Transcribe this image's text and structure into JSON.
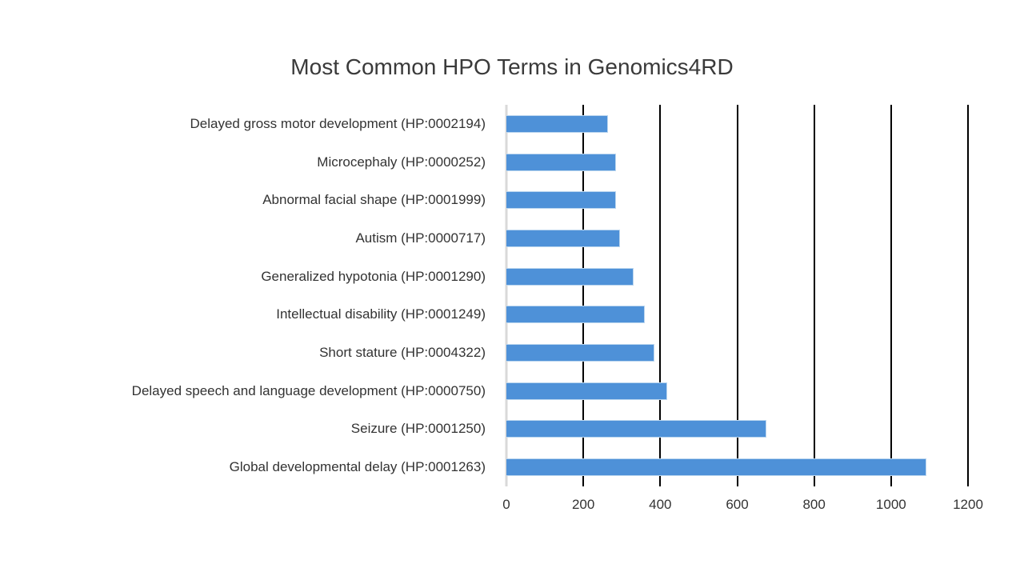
{
  "colors": {
    "bar_fill": "#4E91D8",
    "bar_border": "#BBD6EF",
    "gridline": "#000000",
    "zero_axis_line": "#D9D9D9",
    "title_text": "#3A3A3A",
    "label_text": "#333333"
  },
  "chart_data": {
    "type": "bar",
    "orientation": "horizontal",
    "title": "Most Common HPO Terms in Genomics4RD",
    "xlabel": "",
    "ylabel": "",
    "categories": [
      "Delayed gross motor development (HP:0002194)",
      "Microcephaly (HP:0000252)",
      "Abnormal facial shape (HP:0001999)",
      "Autism (HP:0000717)",
      "Generalized hypotonia (HP:0001290)",
      "Intellectual disability (HP:0001249)",
      "Short stature (HP:0004322)",
      "Delayed speech and language development (HP:0000750)",
      "Seizure (HP:0001250)",
      "Global developmental delay (HP:0001263)"
    ],
    "values": [
      265,
      284,
      284,
      295,
      331,
      360,
      384,
      417,
      675,
      1092
    ],
    "xlim": [
      0,
      1200
    ],
    "xticks": [
      0,
      200,
      400,
      600,
      800,
      1000,
      1200
    ],
    "grid": "vertical gridlines at major x ticks, black; zero axis line light gray",
    "legend": "none",
    "category_order": "top to bottom as listed (largest value at bottom)"
  }
}
